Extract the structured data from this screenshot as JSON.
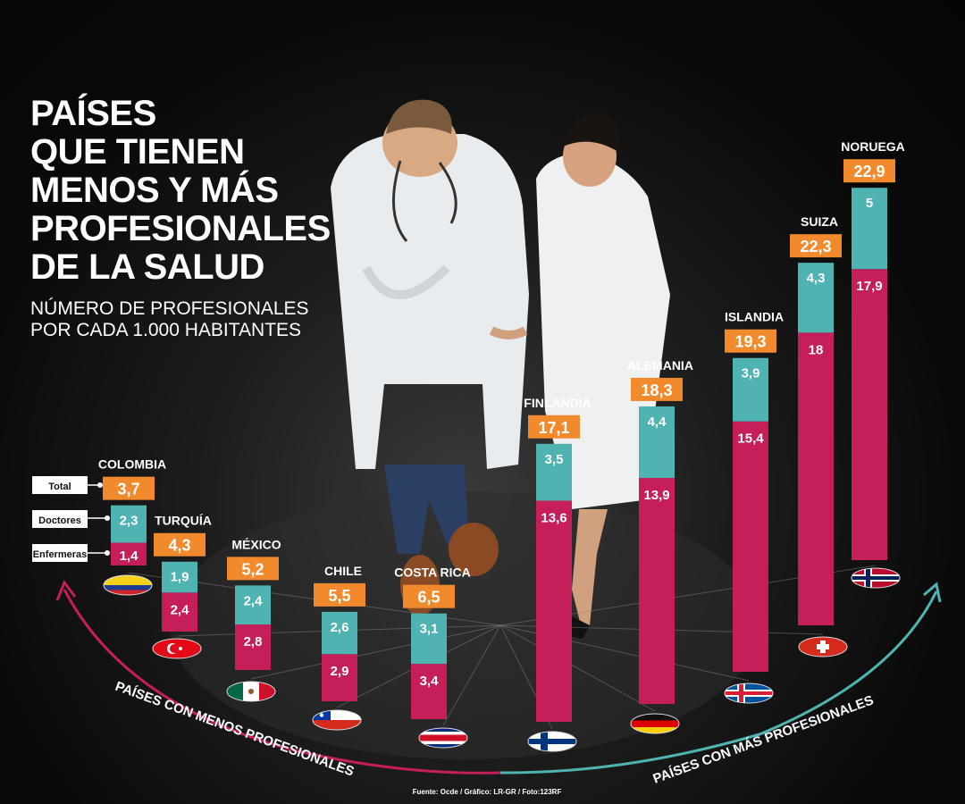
{
  "title_lines": [
    "PAÍSES",
    "QUE TIENEN",
    "MENOS Y MÁS",
    "PROFESIONALES",
    "DE LA SALUD"
  ],
  "subtitle_lines": [
    "NÚMERO DE PROFESIONALES",
    "POR CADA 1.000 HABITANTES"
  ],
  "legend": {
    "total": "Total",
    "doctors": "Doctores",
    "nurses": "Enfermeras"
  },
  "arc_left_label": "PAÍSES CON MENOS PROFESIONALES",
  "arc_right_label": "PAÍSES CON MÁS PROFESIONALES",
  "source": "Fuente: Ocde / Gráfico: LR-GR / Foto:123RF",
  "colors": {
    "total": "#f08a2c",
    "doctors": "#4fb3b1",
    "nurses": "#c51e5a",
    "arc_left": "#c51e5a",
    "arc_right": "#4fb3b1"
  },
  "chart_data": {
    "type": "bar",
    "stacked": true,
    "categories": [
      "COLOMBIA",
      "TURQUÍA",
      "MÉXICO",
      "CHILE",
      "COSTA RICA",
      "FINLANDIA",
      "ALEMANIA",
      "ISLANDIA",
      "SUIZA",
      "NORUEGA"
    ],
    "totals": [
      "3,7",
      "4,3",
      "5,2",
      "5,5",
      "6,5",
      "17,1",
      "18,3",
      "19,3",
      "22,3",
      "22,9"
    ],
    "series": [
      {
        "name": "Doctores",
        "values": [
          2.3,
          1.9,
          2.4,
          2.6,
          3.1,
          3.5,
          4.4,
          3.9,
          4.3,
          5
        ],
        "labels": [
          "2,3",
          "1,9",
          "2,4",
          "2,6",
          "3,1",
          "3,5",
          "4,4",
          "3,9",
          "4,3",
          "5"
        ]
      },
      {
        "name": "Enfermeras",
        "values": [
          1.4,
          2.4,
          2.8,
          2.9,
          3.4,
          13.6,
          13.9,
          15.4,
          18,
          17.9
        ],
        "labels": [
          "1,4",
          "2,4",
          "2,8",
          "2,9",
          "3,4",
          "13,6",
          "13,9",
          "15,4",
          "18",
          "17,9"
        ]
      }
    ],
    "flags": [
      "colombia-flag",
      "turkey-flag",
      "mexico-flag",
      "chile-flag",
      "costa-rica-flag",
      "finland-flag",
      "germany-flag",
      "iceland-flag",
      "switzerland-flag",
      "norway-flag"
    ]
  }
}
